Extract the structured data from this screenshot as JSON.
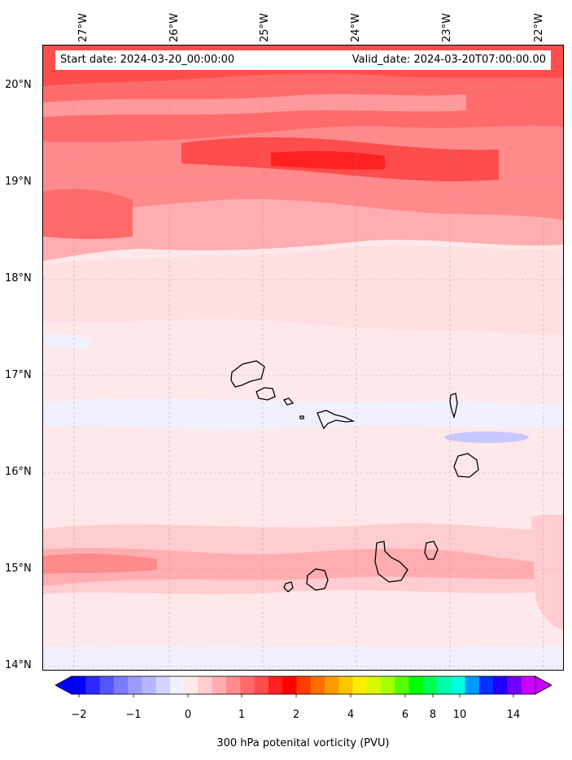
{
  "map": {
    "start_date": "Start date: 2024-03-20_00:00:00",
    "valid_date": "Valid_date: 2024-03-20T07:00:00.00",
    "lon_labels": [
      "27°W",
      "26°W",
      "25°W",
      "24°W",
      "23°W",
      "22°W"
    ],
    "lat_labels": [
      "20°N",
      "19°N",
      "18°N",
      "17°N",
      "16°N",
      "15°N",
      "14°N"
    ],
    "lat_range": [
      14,
      20.5
    ],
    "lon_range": [
      -27.3,
      -21.8
    ],
    "gridlines": true
  },
  "colorbar": {
    "label": "300 hPa potenital vorticity (PVU)",
    "tick_labels": [
      "−2",
      "−1",
      "0",
      "1",
      "2",
      "4",
      "6",
      "8",
      "10",
      "14"
    ],
    "colors": [
      "#0000ff",
      "#2a2aff",
      "#5555ff",
      "#7b7bff",
      "#9b9bff",
      "#b6b6ff",
      "#d3d3ff",
      "#f0f0ff",
      "#ffe8ea",
      "#ffcccf",
      "#ffadb0",
      "#ff8a8c",
      "#ff6b6b",
      "#ff4d4d",
      "#ff2020",
      "#ff0000",
      "#ff3d00",
      "#ff6f00",
      "#ff9900",
      "#ffc400",
      "#ffee00",
      "#d8f700",
      "#a6ff00",
      "#55ff00",
      "#00ff00",
      "#00ff55",
      "#00ffaa",
      "#00ffdd",
      "#0099ff",
      "#0033ff",
      "#2200ff",
      "#7000ff",
      "#cc00ff"
    ]
  }
}
